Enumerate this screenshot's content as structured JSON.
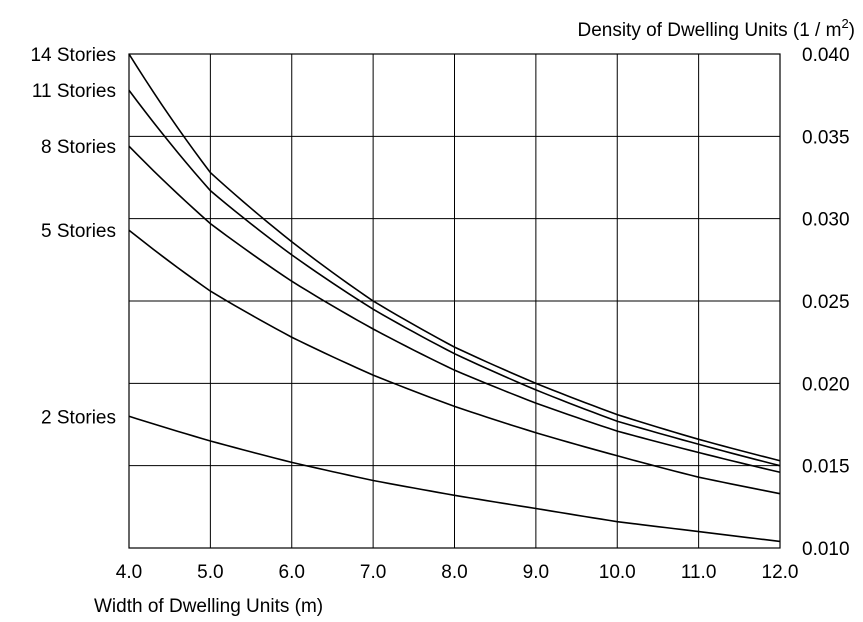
{
  "chart_data": {
    "type": "line",
    "xlabel": "Width of Dwelling Units (m)",
    "ylabel": "Density of Dwelling Units (1 / m",
    "ylabel_superscript": "2",
    "ylabel_close": ")",
    "xlim": [
      4.0,
      12.0
    ],
    "ylim": [
      0.01,
      0.04
    ],
    "x_ticks": [
      "4.0",
      "5.0",
      "6.0",
      "7.0",
      "8.0",
      "9.0",
      "10.0",
      "11.0",
      "12.0"
    ],
    "y_ticks": [
      "0.010",
      "0.015",
      "0.020",
      "0.025",
      "0.030",
      "0.035",
      "0.040"
    ],
    "y_tick_values": [
      0.01,
      0.015,
      0.02,
      0.025,
      0.03,
      0.035,
      0.04
    ],
    "x_tick_values": [
      4,
      5,
      6,
      7,
      8,
      9,
      10,
      11,
      12
    ],
    "y_axis_side": "right",
    "grid": true,
    "x": [
      4.0,
      5.0,
      6.0,
      7.0,
      8.0,
      9.0,
      10.0,
      11.0,
      12.0
    ],
    "series": [
      {
        "name": "14 Stories",
        "values": [
          0.04,
          0.0328,
          0.0286,
          0.025,
          0.0222,
          0.02,
          0.0181,
          0.0166,
          0.0153
        ]
      },
      {
        "name": "11 Stories",
        "values": [
          0.0378,
          0.0317,
          0.0278,
          0.0245,
          0.0218,
          0.0196,
          0.0177,
          0.0163,
          0.015
        ]
      },
      {
        "name": "8 Stories",
        "values": [
          0.0344,
          0.0297,
          0.0262,
          0.0233,
          0.0208,
          0.0188,
          0.0171,
          0.0158,
          0.0146
        ]
      },
      {
        "name": "5 Stories",
        "values": [
          0.0293,
          0.0256,
          0.0228,
          0.0205,
          0.0186,
          0.017,
          0.0156,
          0.0143,
          0.0133
        ]
      },
      {
        "name": "2 Stories",
        "values": [
          0.018,
          0.0165,
          0.0152,
          0.0141,
          0.0132,
          0.0124,
          0.0116,
          0.011,
          0.0104
        ]
      }
    ]
  }
}
